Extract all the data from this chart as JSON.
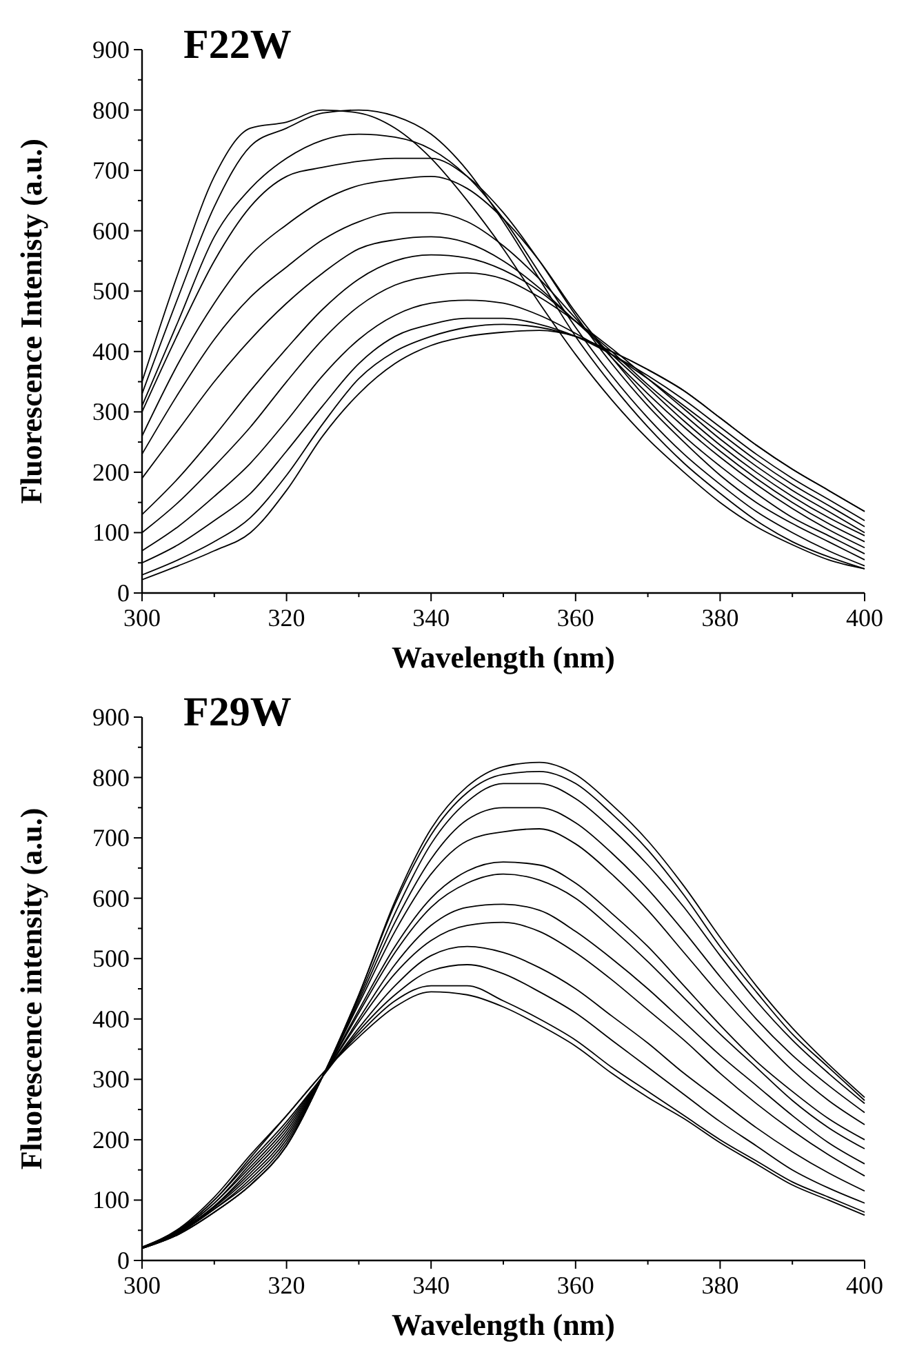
{
  "chart_data": [
    {
      "type": "line",
      "title": "F22W",
      "xlabel": "Wavelength (nm)",
      "ylabel": "Fluorescence Intenisty (a.u.)",
      "xlim": [
        300,
        400
      ],
      "ylim": [
        0,
        900
      ],
      "xticks": [
        300,
        {
          "value": 310,
          "label": null
        },
        320,
        {
          "value": 330,
          "label": null
        },
        340,
        {
          "value": 350,
          "label": null
        },
        360,
        {
          "value": 370,
          "label": null
        },
        380,
        {
          "value": 390,
          "label": null
        },
        400
      ],
      "yticks": [
        0,
        {
          "value": 50,
          "label": null
        },
        100,
        {
          "value": 150,
          "label": null
        },
        200,
        {
          "value": 250,
          "label": null
        },
        300,
        {
          "value": 350,
          "label": null
        },
        400,
        {
          "value": 450,
          "label": null
        },
        500,
        {
          "value": 550,
          "label": null
        },
        600,
        {
          "value": 650,
          "label": null
        },
        700,
        {
          "value": 750,
          "label": null
        },
        800,
        {
          "value": 850,
          "label": null
        },
        900
      ],
      "x": [
        300,
        305,
        310,
        315,
        320,
        325,
        330,
        335,
        340,
        345,
        350,
        355,
        360,
        365,
        370,
        375,
        380,
        385,
        390,
        395,
        400
      ],
      "series": [
        {
          "color": "#000000",
          "values": [
            22,
            45,
            70,
            100,
            170,
            260,
            330,
            380,
            410,
            425,
            432,
            435,
            425,
            400,
            370,
            335,
            290,
            245,
            205,
            170,
            135
          ]
        },
        {
          "color": "#000000",
          "values": [
            30,
            55,
            85,
            125,
            195,
            280,
            355,
            400,
            425,
            440,
            445,
            440,
            425,
            400,
            370,
            335,
            290,
            245,
            205,
            170,
            135
          ]
        },
        {
          "color": "#000000",
          "values": [
            50,
            80,
            120,
            165,
            235,
            310,
            380,
            425,
            445,
            455,
            455,
            445,
            425,
            395,
            360,
            320,
            275,
            230,
            190,
            155,
            120
          ]
        },
        {
          "color": "#000000",
          "values": [
            70,
            110,
            160,
            215,
            285,
            360,
            420,
            460,
            480,
            485,
            480,
            460,
            430,
            395,
            355,
            310,
            265,
            220,
            180,
            145,
            110
          ]
        },
        {
          "color": "#000000",
          "values": [
            100,
            150,
            210,
            275,
            350,
            420,
            475,
            510,
            525,
            530,
            520,
            490,
            450,
            405,
            355,
            305,
            255,
            210,
            170,
            135,
            100
          ]
        },
        {
          "color": "#000000",
          "values": [
            130,
            190,
            260,
            335,
            405,
            470,
            520,
            550,
            560,
            555,
            535,
            500,
            450,
            400,
            345,
            295,
            245,
            200,
            160,
            125,
            95
          ]
        },
        {
          "color": "#000000",
          "values": [
            190,
            270,
            350,
            420,
            480,
            530,
            570,
            585,
            590,
            580,
            550,
            505,
            450,
            395,
            340,
            285,
            235,
            190,
            150,
            115,
            85
          ]
        },
        {
          "color": "#000000",
          "values": [
            230,
            330,
            420,
            490,
            540,
            585,
            615,
            630,
            630,
            615,
            575,
            520,
            455,
            390,
            330,
            275,
            225,
            180,
            140,
            105,
            75
          ]
        },
        {
          "color": "#000000",
          "values": [
            260,
            380,
            480,
            560,
            610,
            650,
            675,
            685,
            690,
            670,
            620,
            550,
            465,
            390,
            320,
            260,
            210,
            165,
            125,
            95,
            65
          ]
        },
        {
          "color": "#000000",
          "values": [
            300,
            430,
            550,
            640,
            690,
            705,
            715,
            720,
            720,
            690,
            630,
            550,
            460,
            380,
            310,
            250,
            195,
            150,
            115,
            85,
            55
          ]
        },
        {
          "color": "#000000",
          "values": [
            310,
            450,
            590,
            670,
            720,
            750,
            760,
            755,
            735,
            690,
            620,
            530,
            440,
            360,
            290,
            230,
            180,
            135,
            100,
            70,
            45
          ]
        },
        {
          "color": "#000000",
          "values": [
            330,
            490,
            640,
            740,
            770,
            795,
            800,
            790,
            760,
            700,
            615,
            520,
            425,
            345,
            275,
            215,
            165,
            120,
            85,
            60,
            40
          ]
        },
        {
          "color": "#000000",
          "values": [
            350,
            530,
            690,
            770,
            780,
            800,
            795,
            770,
            720,
            650,
            570,
            480,
            395,
            320,
            255,
            200,
            150,
            110,
            80,
            55,
            40
          ]
        }
      ]
    },
    {
      "type": "line",
      "title": "F29W",
      "xlabel": "Wavelength (nm)",
      "ylabel": "Fluorescence intensity (a.u.)",
      "xlim": [
        300,
        400
      ],
      "ylim": [
        0,
        900
      ],
      "xticks": [
        300,
        {
          "value": 310,
          "label": null
        },
        320,
        {
          "value": 330,
          "label": null
        },
        340,
        {
          "value": 350,
          "label": null
        },
        360,
        {
          "value": 370,
          "label": null
        },
        380,
        {
          "value": 390,
          "label": null
        },
        400
      ],
      "yticks": [
        0,
        {
          "value": 50,
          "label": null
        },
        100,
        {
          "value": 150,
          "label": null
        },
        200,
        {
          "value": 250,
          "label": null
        },
        300,
        {
          "value": 350,
          "label": null
        },
        400,
        {
          "value": 450,
          "label": null
        },
        500,
        {
          "value": 550,
          "label": null
        },
        600,
        {
          "value": 650,
          "label": null
        },
        700,
        {
          "value": 750,
          "label": null
        },
        800,
        {
          "value": 850,
          "label": null
        },
        900
      ],
      "x": [
        300,
        305,
        310,
        315,
        320,
        325,
        330,
        335,
        340,
        345,
        350,
        355,
        360,
        365,
        370,
        375,
        380,
        385,
        390,
        395,
        400
      ],
      "series": [
        {
          "color": "#000000",
          "values": [
            20,
            50,
            100,
            170,
            240,
            310,
            370,
            420,
            445,
            440,
            420,
            390,
            355,
            310,
            270,
            235,
            195,
            160,
            125,
            100,
            75
          ]
        },
        {
          "color": "#000000",
          "values": [
            22,
            52,
            105,
            175,
            240,
            310,
            375,
            430,
            455,
            455,
            430,
            400,
            365,
            320,
            280,
            240,
            200,
            165,
            130,
            105,
            80
          ]
        },
        {
          "color": "#000000",
          "values": [
            22,
            50,
            100,
            165,
            230,
            305,
            380,
            440,
            480,
            490,
            475,
            445,
            410,
            365,
            320,
            275,
            230,
            190,
            150,
            120,
            95
          ]
        },
        {
          "color": "#000000",
          "values": [
            22,
            50,
            95,
            160,
            225,
            305,
            385,
            455,
            505,
            520,
            510,
            485,
            450,
            405,
            360,
            310,
            265,
            220,
            180,
            145,
            115
          ]
        },
        {
          "color": "#000000",
          "values": [
            22,
            48,
            95,
            155,
            220,
            305,
            395,
            475,
            530,
            555,
            560,
            545,
            510,
            465,
            415,
            365,
            310,
            260,
            215,
            175,
            140
          ]
        },
        {
          "color": "#000000",
          "values": [
            22,
            48,
            90,
            150,
            215,
            305,
            400,
            490,
            555,
            585,
            590,
            580,
            545,
            500,
            450,
            395,
            340,
            290,
            240,
            195,
            160
          ]
        },
        {
          "color": "#000000",
          "values": [
            22,
            47,
            90,
            145,
            210,
            305,
            410,
            510,
            585,
            625,
            640,
            630,
            600,
            550,
            495,
            435,
            375,
            320,
            265,
            220,
            185
          ]
        },
        {
          "color": "#000000",
          "values": [
            22,
            46,
            88,
            140,
            205,
            305,
            415,
            520,
            600,
            645,
            660,
            655,
            625,
            575,
            520,
            455,
            390,
            330,
            280,
            235,
            200
          ]
        },
        {
          "color": "#000000",
          "values": [
            22,
            45,
            85,
            135,
            200,
            305,
            425,
            545,
            640,
            695,
            710,
            715,
            690,
            640,
            580,
            510,
            440,
            375,
            315,
            265,
            225
          ]
        },
        {
          "color": "#000000",
          "values": [
            20,
            45,
            85,
            130,
            195,
            305,
            430,
            560,
            665,
            730,
            750,
            750,
            725,
            675,
            615,
            545,
            470,
            400,
            340,
            290,
            245
          ]
        },
        {
          "color": "#000000",
          "values": [
            20,
            43,
            80,
            125,
            190,
            305,
            435,
            575,
            690,
            760,
            790,
            790,
            765,
            715,
            655,
            585,
            505,
            430,
            365,
            310,
            260
          ]
        },
        {
          "color": "#000000",
          "values": [
            20,
            43,
            80,
            125,
            190,
            305,
            440,
            590,
            705,
            775,
            805,
            810,
            790,
            740,
            680,
            605,
            520,
            445,
            375,
            320,
            265
          ]
        },
        {
          "color": "#000000",
          "values": [
            20,
            43,
            80,
            125,
            190,
            305,
            440,
            595,
            715,
            785,
            818,
            825,
            805,
            755,
            695,
            620,
            535,
            455,
            385,
            325,
            270
          ]
        }
      ]
    }
  ]
}
